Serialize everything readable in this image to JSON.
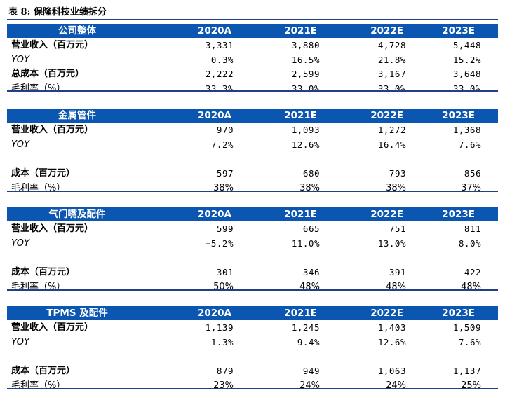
{
  "title": "表 8:  保隆科技业绩拆分",
  "years": [
    "2020A",
    "2021E",
    "2022E",
    "2023E"
  ],
  "sections": [
    {
      "name": "公司整体",
      "rows": [
        {
          "label": "营业收入（百万元）",
          "values": [
            "3,331",
            "3,880",
            "4,728",
            "5,448"
          ]
        },
        {
          "label": "YOY",
          "values": [
            "0.3%",
            "16.5%",
            "21.8%",
            "15.2%"
          ]
        },
        {
          "label": "总成本（百万元）",
          "values": [
            "2,222",
            "2,599",
            "3,167",
            "3,648"
          ]
        },
        {
          "label": "毛利率（%）",
          "values": [
            "33.3%",
            "33.0%",
            "33.0%",
            "33.0%"
          ]
        }
      ]
    },
    {
      "name": "金属管件",
      "rows": [
        {
          "label": "营业收入（百万元）",
          "values": [
            "970",
            "1,093",
            "1,272",
            "1,368"
          ]
        },
        {
          "label": "YOY",
          "values": [
            "7.2%",
            "12.6%",
            "16.4%",
            "7.6%"
          ]
        },
        {
          "label": "成本（百万元）",
          "values": [
            "597",
            "680",
            "793",
            "856"
          ]
        },
        {
          "label": "毛利率（%）",
          "values": [
            "38%",
            "38%",
            "38%",
            "37%"
          ]
        }
      ]
    },
    {
      "name": "气门嘴及配件",
      "rows": [
        {
          "label": "营业收入（百万元）",
          "values": [
            "599",
            "665",
            "751",
            "811"
          ]
        },
        {
          "label": "YOY",
          "values": [
            "−5.2%",
            "11.0%",
            "13.0%",
            "8.0%"
          ]
        },
        {
          "label": "成本（百万元）",
          "values": [
            "301",
            "346",
            "391",
            "422"
          ]
        },
        {
          "label": "毛利率（%）",
          "values": [
            "50%",
            "48%",
            "48%",
            "48%"
          ]
        }
      ]
    },
    {
      "name": "TPMS 及配件",
      "rows": [
        {
          "label": "营业收入（百万元）",
          "values": [
            "1,139",
            "1,245",
            "1,403",
            "1,509"
          ]
        },
        {
          "label": "YOY",
          "values": [
            "1.3%",
            "9.4%",
            "12.6%",
            "7.6%"
          ]
        },
        {
          "label": "成本（百万元）",
          "values": [
            "879",
            "949",
            "1,063",
            "1,137"
          ]
        },
        {
          "label": "毛利率（%）",
          "values": [
            "23%",
            "24%",
            "24%",
            "25%"
          ]
        }
      ]
    }
  ],
  "colors": {
    "header_bg": "#0a56b0",
    "rule": "#1f3f8a"
  }
}
